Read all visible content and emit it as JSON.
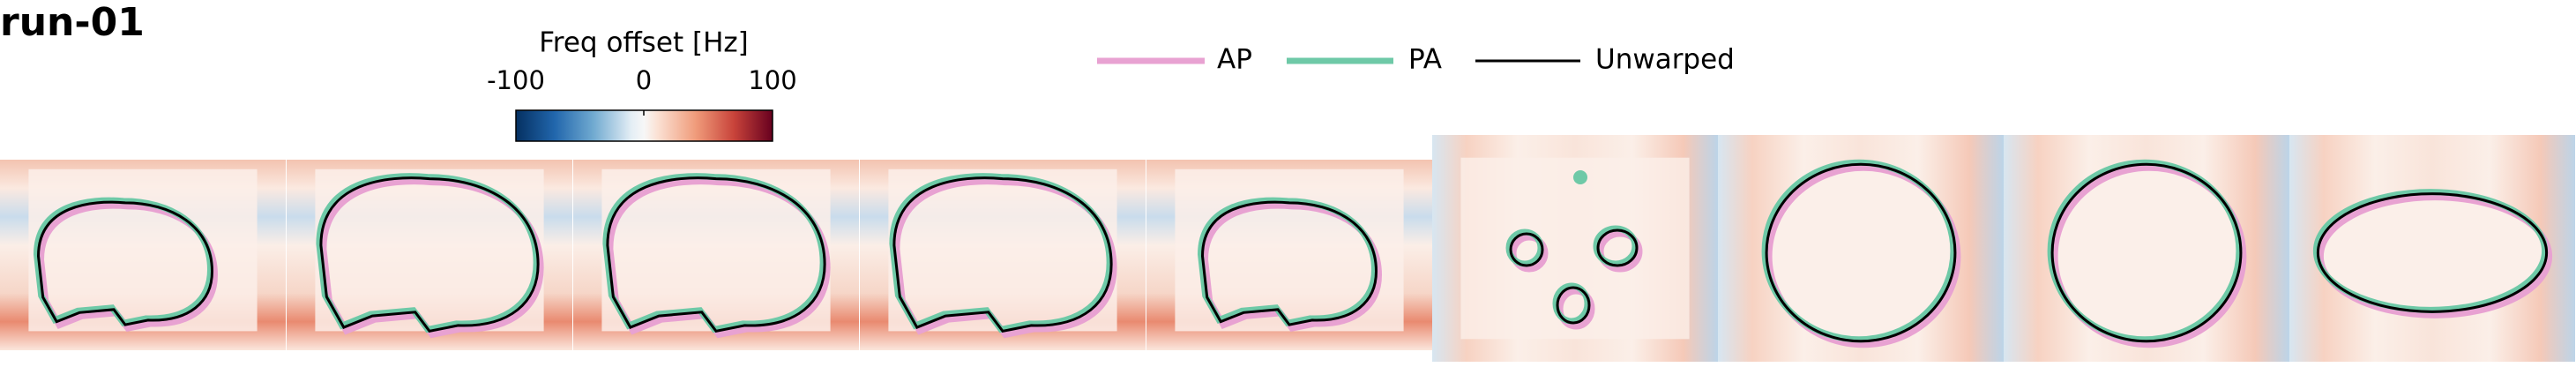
{
  "header": {
    "title": "run-01"
  },
  "colorbar": {
    "label": "Freq offset [Hz]",
    "ticks": [
      -100,
      0,
      100
    ]
  },
  "legend": {
    "items": [
      "AP",
      "PA",
      "Unwarped"
    ]
  }
}
